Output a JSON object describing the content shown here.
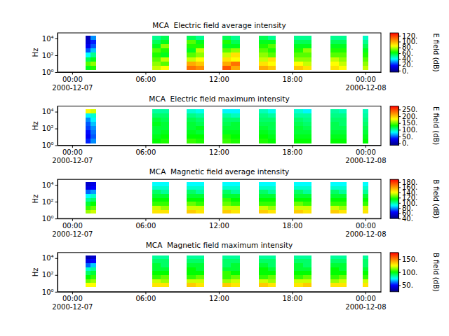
{
  "chart_data": [
    {
      "type": "heatmap",
      "title": "MCA  Electric field average intensity",
      "y_label": "Hz",
      "log": "y",
      "xlim": [
        "2000-12-06T22:48",
        "2000-12-08T01:16"
      ],
      "xticks": [
        {
          "value": "2000-12-07T00:00",
          "label": "00:00\n2000-12-07"
        },
        {
          "value": "2000-12-07T06:00",
          "label": "06:00"
        },
        {
          "value": "2000-12-07T12:00",
          "label": "12:00"
        },
        {
          "value": "2000-12-07T18:00",
          "label": "18:00"
        },
        {
          "value": "2000-12-08T00:00",
          "label": "00:00\n2000-12-08"
        }
      ],
      "ylim": [
        1,
        46000
      ],
      "yticks": [
        {
          "value": 1,
          "label": "10⁰"
        },
        {
          "value": 100,
          "label": "10²"
        },
        {
          "value": 10000,
          "label": "10⁴"
        }
      ],
      "x": [
        "2000-12-07T01:06",
        "2000-12-07T01:30",
        "2000-12-07T06:34",
        "2000-12-07T07:15",
        "2000-12-07T09:22",
        "2000-12-07T10:05",
        "2000-12-07T12:17",
        "2000-12-07T13:00",
        "2000-12-07T15:16",
        "2000-12-07T16:00",
        "2000-12-07T18:10",
        "2000-12-07T18:53",
        "2000-12-07T21:08",
        "2000-12-07T21:48",
        "2000-12-07T23:46"
      ],
      "x_end": [
        "2000-12-07T01:30",
        "2000-12-07T01:57",
        "2000-12-07T07:15",
        "2000-12-07T07:56",
        "2000-12-07T10:05",
        "2000-12-07T10:48",
        "2000-12-07T13:00",
        "2000-12-07T13:43",
        "2000-12-07T16:00",
        "2000-12-07T16:41",
        "2000-12-07T18:53",
        "2000-12-07T19:36",
        "2000-12-07T21:48",
        "2000-12-07T22:28",
        "2000-12-08T00:14"
      ],
      "y": [
        1.8,
        5.8,
        18.6,
        60,
        195,
        630,
        2040,
        6600,
        21400
      ],
      "values": [
        [
          60,
          70,
          55,
          40,
          25,
          15,
          10,
          5
        ],
        [
          65,
          75,
          60,
          50,
          35,
          25,
          20,
          30
        ],
        [
          80,
          75,
          70,
          65,
          70,
          60,
          55,
          50
        ],
        [
          85,
          70,
          80,
          60,
          65,
          75,
          60,
          55
        ],
        [
          110,
          100,
          80,
          70,
          60,
          65,
          70,
          55
        ],
        [
          105,
          95,
          85,
          75,
          80,
          65,
          60,
          50
        ],
        [
          115,
          100,
          90,
          80,
          70,
          60,
          65,
          55
        ],
        [
          100,
          110,
          85,
          90,
          75,
          60,
          55,
          50
        ],
        [
          100,
          90,
          80,
          75,
          70,
          65,
          60,
          55
        ],
        [
          95,
          85,
          90,
          70,
          65,
          70,
          60,
          50
        ],
        [
          95,
          85,
          75,
          70,
          65,
          60,
          55,
          50
        ],
        [
          90,
          80,
          75,
          70,
          75,
          60,
          55,
          50
        ],
        [
          90,
          85,
          80,
          70,
          65,
          60,
          55,
          50
        ],
        [
          85,
          80,
          75,
          70,
          65,
          60,
          55,
          50
        ],
        [
          80,
          75,
          70,
          65,
          60,
          55,
          50,
          45
        ]
      ],
      "colorbar": {
        "label": "E field (dB)",
        "lim": [
          -5,
          130
        ],
        "ticks": [
          {
            "value": 0,
            "label": "0."
          },
          {
            "value": 20,
            "label": "20."
          },
          {
            "value": 40,
            "label": "40."
          },
          {
            "value": 60,
            "label": "60."
          },
          {
            "value": 80,
            "label": "80."
          },
          {
            "value": 100,
            "label": "100."
          },
          {
            "value": 120,
            "label": "120."
          }
        ]
      }
    },
    {
      "type": "heatmap",
      "title": "MCA  Electric field maximum intensity",
      "y_label": "Hz",
      "log": "y",
      "xlim": [
        "2000-12-06T22:48",
        "2000-12-08T01:16"
      ],
      "xticks": [
        {
          "value": "2000-12-07T00:00",
          "label": "00:00\n2000-12-07"
        },
        {
          "value": "2000-12-07T06:00",
          "label": "06:00"
        },
        {
          "value": "2000-12-07T12:00",
          "label": "12:00"
        },
        {
          "value": "2000-12-07T18:00",
          "label": "18:00"
        },
        {
          "value": "2000-12-08T00:00",
          "label": "00:00\n2000-12-08"
        }
      ],
      "ylim": [
        1,
        46000
      ],
      "yticks": [
        {
          "value": 1,
          "label": "10⁰"
        },
        {
          "value": 100,
          "label": "10²"
        },
        {
          "value": 10000,
          "label": "10⁴"
        }
      ],
      "x": [
        "2000-12-07T01:06",
        "2000-12-07T01:30",
        "2000-12-07T06:34",
        "2000-12-07T07:15",
        "2000-12-07T09:22",
        "2000-12-07T10:05",
        "2000-12-07T12:17",
        "2000-12-07T13:00",
        "2000-12-07T15:16",
        "2000-12-07T16:00",
        "2000-12-07T18:10",
        "2000-12-07T18:53",
        "2000-12-07T21:08",
        "2000-12-07T21:48",
        "2000-12-07T23:46"
      ],
      "x_end": [
        "2000-12-07T01:30",
        "2000-12-07T01:57",
        "2000-12-07T07:15",
        "2000-12-07T07:56",
        "2000-12-07T10:05",
        "2000-12-07T10:48",
        "2000-12-07T13:00",
        "2000-12-07T13:43",
        "2000-12-07T16:00",
        "2000-12-07T16:41",
        "2000-12-07T18:53",
        "2000-12-07T19:36",
        "2000-12-07T21:48",
        "2000-12-07T22:28",
        "2000-12-08T00:14"
      ],
      "y": [
        1.8,
        5.8,
        18.6,
        60,
        195,
        630,
        2040,
        6600,
        21400
      ],
      "values": [
        [
          40,
          30,
          35,
          45,
          50,
          60,
          80,
          180
        ],
        [
          60,
          50,
          55,
          60,
          70,
          80,
          90,
          170
        ],
        [
          130,
          125,
          120,
          120,
          125,
          120,
          110,
          100
        ],
        [
          135,
          130,
          125,
          120,
          120,
          115,
          110,
          100
        ],
        [
          140,
          130,
          125,
          120,
          120,
          115,
          105,
          90
        ],
        [
          135,
          130,
          120,
          125,
          115,
          110,
          100,
          85
        ],
        [
          140,
          135,
          125,
          120,
          115,
          110,
          100,
          80
        ],
        [
          135,
          130,
          125,
          120,
          120,
          110,
          95,
          80
        ],
        [
          135,
          130,
          125,
          120,
          115,
          110,
          105,
          95
        ],
        [
          130,
          125,
          120,
          115,
          115,
          110,
          100,
          85
        ],
        [
          130,
          125,
          120,
          120,
          115,
          110,
          100,
          90
        ],
        [
          130,
          125,
          120,
          115,
          110,
          105,
          100,
          80
        ],
        [
          130,
          125,
          120,
          115,
          115,
          110,
          105,
          100
        ],
        [
          130,
          125,
          120,
          115,
          110,
          110,
          105,
          95
        ],
        [
          130,
          125,
          120,
          115,
          110,
          105,
          100,
          95
        ]
      ],
      "colorbar": {
        "label": "E field (dB)",
        "lim": [
          -15,
          275
        ],
        "ticks": [
          {
            "value": 0,
            "label": "0."
          },
          {
            "value": 50,
            "label": "50."
          },
          {
            "value": 100,
            "label": "100."
          },
          {
            "value": 150,
            "label": "150."
          },
          {
            "value": 200,
            "label": "200."
          },
          {
            "value": 250,
            "label": "250."
          }
        ]
      }
    },
    {
      "type": "heatmap",
      "title": "MCA  Magnetic field average intensity",
      "y_label": "Hz",
      "log": "y",
      "xlim": [
        "2000-12-06T22:48",
        "2000-12-08T01:16"
      ],
      "xticks": [
        {
          "value": "2000-12-07T00:00",
          "label": "00:00\n2000-12-07"
        },
        {
          "value": "2000-12-07T06:00",
          "label": "06:00"
        },
        {
          "value": "2000-12-07T12:00",
          "label": "12:00"
        },
        {
          "value": "2000-12-07T18:00",
          "label": "18:00"
        },
        {
          "value": "2000-12-08T00:00",
          "label": "00:00\n2000-12-08"
        }
      ],
      "ylim": [
        1,
        46000
      ],
      "yticks": [
        {
          "value": 1,
          "label": "10⁰"
        },
        {
          "value": 100,
          "label": "10²"
        },
        {
          "value": 10000,
          "label": "10⁴"
        }
      ],
      "x": [
        "2000-12-07T01:06",
        "2000-12-07T01:30",
        "2000-12-07T06:34",
        "2000-12-07T07:15",
        "2000-12-07T09:22",
        "2000-12-07T10:05",
        "2000-12-07T12:17",
        "2000-12-07T13:00",
        "2000-12-07T15:16",
        "2000-12-07T16:00",
        "2000-12-07T18:10",
        "2000-12-07T18:53",
        "2000-12-07T21:08",
        "2000-12-07T21:48",
        "2000-12-07T23:46"
      ],
      "x_end": [
        "2000-12-07T01:30",
        "2000-12-07T01:57",
        "2000-12-07T07:15",
        "2000-12-07T07:56",
        "2000-12-07T10:05",
        "2000-12-07T10:48",
        "2000-12-07T13:00",
        "2000-12-07T13:43",
        "2000-12-07T16:00",
        "2000-12-07T16:41",
        "2000-12-07T18:53",
        "2000-12-07T19:36",
        "2000-12-07T21:48",
        "2000-12-07T22:28",
        "2000-12-08T00:14"
      ],
      "y": [
        3.8,
        11,
        33,
        97,
        285,
        840,
        2460,
        7240,
        21400
      ],
      "values": [
        [
          130,
          120,
          110,
          100,
          90,
          75,
          60,
          55
        ],
        [
          135,
          125,
          115,
          105,
          95,
          80,
          65,
          60
        ],
        [
          145,
          135,
          120,
          115,
          110,
          105,
          95,
          90
        ],
        [
          145,
          130,
          120,
          115,
          110,
          100,
          95,
          90
        ],
        [
          150,
          135,
          125,
          115,
          110,
          105,
          95,
          90
        ],
        [
          145,
          135,
          120,
          115,
          110,
          100,
          95,
          90
        ],
        [
          150,
          135,
          125,
          120,
          110,
          105,
          95,
          90
        ],
        [
          145,
          135,
          120,
          115,
          110,
          100,
          95,
          90
        ],
        [
          150,
          135,
          120,
          115,
          110,
          105,
          95,
          90
        ],
        [
          145,
          130,
          120,
          115,
          110,
          100,
          95,
          90
        ],
        [
          150,
          135,
          125,
          115,
          110,
          105,
          95,
          90
        ],
        [
          145,
          135,
          120,
          115,
          110,
          100,
          95,
          90
        ],
        [
          150,
          135,
          120,
          115,
          110,
          105,
          95,
          90
        ],
        [
          145,
          130,
          120,
          115,
          110,
          100,
          95,
          90
        ],
        [
          145,
          135,
          120,
          115,
          110,
          100,
          95,
          90
        ]
      ],
      "colorbar": {
        "label": "B field (dB)",
        "lim": [
          40,
          190
        ],
        "ticks": [
          {
            "value": 40,
            "label": "40."
          },
          {
            "value": 60,
            "label": "60."
          },
          {
            "value": 80,
            "label": "80."
          },
          {
            "value": 100,
            "label": "100."
          },
          {
            "value": 120,
            "label": "120."
          },
          {
            "value": 140,
            "label": "140."
          },
          {
            "value": 160,
            "label": "160."
          },
          {
            "value": 180,
            "label": "180."
          }
        ]
      }
    },
    {
      "type": "heatmap",
      "title": "MCA  Magnetic field maximum intensity",
      "y_label": "Hz",
      "log": "y",
      "xlim": [
        "2000-12-06T22:48",
        "2000-12-08T01:16"
      ],
      "xticks": [
        {
          "value": "2000-12-07T00:00",
          "label": "00:00\n2000-12-07"
        },
        {
          "value": "2000-12-07T06:00",
          "label": "06:00"
        },
        {
          "value": "2000-12-07T12:00",
          "label": "12:00"
        },
        {
          "value": "2000-12-07T18:00",
          "label": "18:00"
        },
        {
          "value": "2000-12-08T00:00",
          "label": "00:00\n2000-12-08"
        }
      ],
      "ylim": [
        1,
        46000
      ],
      "yticks": [
        {
          "value": 1,
          "label": "10⁰"
        },
        {
          "value": 100,
          "label": "10²"
        },
        {
          "value": 10000,
          "label": "10⁴"
        }
      ],
      "x": [
        "2000-12-07T01:06",
        "2000-12-07T01:30",
        "2000-12-07T06:34",
        "2000-12-07T07:15",
        "2000-12-07T09:22",
        "2000-12-07T10:05",
        "2000-12-07T12:17",
        "2000-12-07T13:00",
        "2000-12-07T15:16",
        "2000-12-07T16:00",
        "2000-12-07T18:10",
        "2000-12-07T18:53",
        "2000-12-07T21:08",
        "2000-12-07T21:48",
        "2000-12-07T23:46"
      ],
      "x_end": [
        "2000-12-07T01:30",
        "2000-12-07T01:57",
        "2000-12-07T07:15",
        "2000-12-07T07:56",
        "2000-12-07T10:05",
        "2000-12-07T10:48",
        "2000-12-07T13:00",
        "2000-12-07T13:43",
        "2000-12-07T16:00",
        "2000-12-07T16:41",
        "2000-12-07T18:53",
        "2000-12-07T19:36",
        "2000-12-07T21:48",
        "2000-12-07T22:28",
        "2000-12-08T00:14"
      ],
      "y": [
        3.8,
        11,
        33,
        97,
        285,
        840,
        2460,
        7240,
        21400
      ],
      "values": [
        [
          125,
          110,
          100,
          90,
          80,
          60,
          45,
          35
        ],
        [
          125,
          115,
          105,
          95,
          85,
          70,
          50,
          40
        ],
        [
          130,
          120,
          105,
          100,
          95,
          95,
          90,
          85
        ],
        [
          130,
          115,
          110,
          100,
          95,
          90,
          90,
          85
        ],
        [
          135,
          120,
          105,
          100,
          100,
          95,
          90,
          85
        ],
        [
          130,
          120,
          110,
          100,
          95,
          95,
          90,
          85
        ],
        [
          135,
          115,
          105,
          105,
          95,
          90,
          90,
          85
        ],
        [
          130,
          120,
          110,
          100,
          95,
          95,
          90,
          85
        ],
        [
          135,
          120,
          105,
          100,
          100,
          95,
          90,
          85
        ],
        [
          130,
          115,
          110,
          100,
          95,
          90,
          90,
          85
        ],
        [
          130,
          120,
          105,
          100,
          95,
          95,
          90,
          85
        ],
        [
          135,
          120,
          110,
          100,
          95,
          90,
          90,
          85
        ],
        [
          130,
          115,
          105,
          100,
          100,
          95,
          90,
          85
        ],
        [
          130,
          120,
          110,
          100,
          95,
          95,
          90,
          85
        ],
        [
          130,
          120,
          105,
          100,
          95,
          90,
          90,
          85
        ]
      ],
      "colorbar": {
        "label": "B field (dB)",
        "lim": [
          25,
          175
        ],
        "ticks": [
          {
            "value": 50,
            "label": "50."
          },
          {
            "value": 100,
            "label": "100."
          },
          {
            "value": 150,
            "label": "150."
          }
        ]
      }
    }
  ]
}
